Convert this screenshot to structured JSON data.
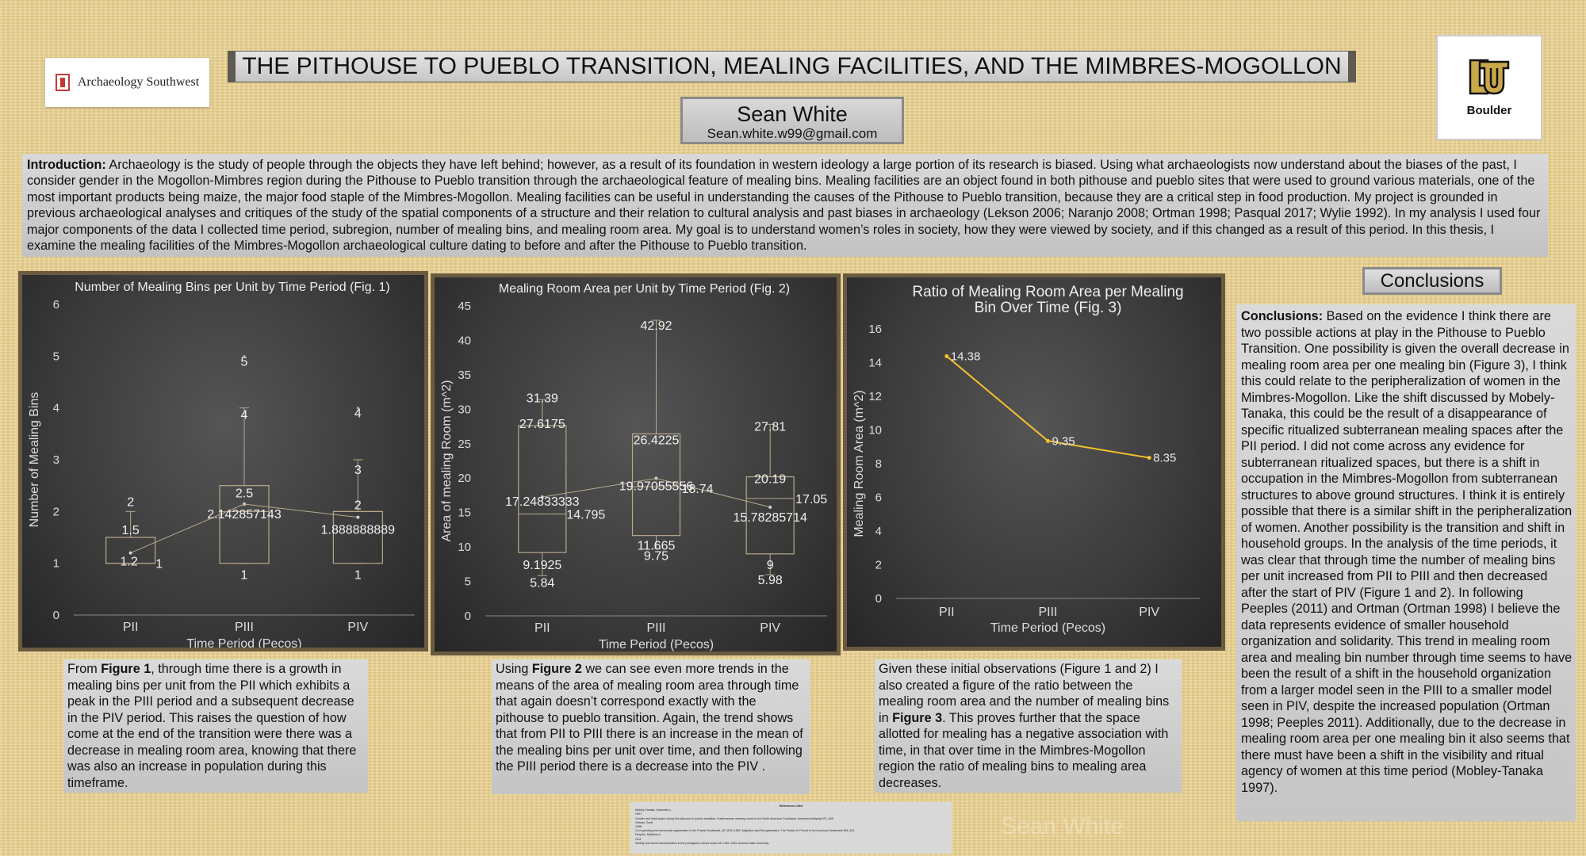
{
  "logo_left": {
    "text": "Archaeology Southwest"
  },
  "title": "THE PITHOUSE TO PUEBLO TRANSITION, MEALING FACILITIES, AND THE MIMBRES-MOGOLLON",
  "author": {
    "name": "Sean White",
    "email": "Sean.white.w99@gmail.com"
  },
  "logo_right": {
    "text": "Boulder"
  },
  "intro": {
    "heading": "Introduction:",
    "body": " Archaeology is the study of people through the objects they have left behind; however, as a result of its foundation in western ideology a large portion of its research is biased. Using what archaeologists now understand about the biases of the past, I consider gender in the Mogollon-Mimbres region during the Pithouse to Pueblo transition through the archaeological feature of mealing bins. Mealing facilities are an object found in both pithouse and pueblo sites that were used to ground various materials, one of the most important products being maize, the major food staple of the Mimbres-Mogollon. Mealing facilities can be useful in understanding the causes of the Pithouse to Pueblo transition, because they are a critical step in food production. My project is grounded in previous archaeological analyses and critiques of the study of the spatial components of a structure and their relation to cultural analysis and past biases in archaeology (Lekson 2006; Naranjo 2008; Ortman 1998; Pasqual 2017; Wylie 1992). In my analysis I used four major components of the data I collected time period, subregion, number of mealing bins, and mealing room area. My goal is to understand women’s roles in society, how they were viewed by society, and if this changed as a result of this period. In this thesis, I examine the mealing facilities of the Mimbres-Mogollon archaeological culture dating to before and after the Pithouse to Pueblo transition."
  },
  "chart_data": [
    {
      "type": "box",
      "title": "Number of Mealing Bins per Unit by Time Period (Fig. 1)",
      "xlabel": "Time Period (Pecos)",
      "ylabel": "Number of Mealing Bins",
      "ylim": [
        0,
        6
      ],
      "yticks": [
        "0",
        "1",
        "2",
        "3",
        "4",
        "5",
        "6"
      ],
      "categories": [
        "PII",
        "PIII",
        "PIV"
      ],
      "boxes": [
        {
          "min": 1,
          "q1": 1,
          "median": 1,
          "q3": 1.5,
          "max": 2,
          "mean": 1.2,
          "outliers": []
        },
        {
          "min": 1,
          "q1": 1,
          "median": 2,
          "q3": 2.5,
          "max": 4,
          "mean": 2.142857143,
          "outliers": [
            5
          ]
        },
        {
          "min": 1,
          "q1": 1,
          "median": 2,
          "q3": 2,
          "max": 3,
          "mean": 1.888888889,
          "outliers": [
            4
          ]
        }
      ],
      "labels": [
        "2",
        "1.5",
        "1.2",
        "1",
        "5",
        "4",
        "2.5",
        "2.142857143",
        "1",
        "4",
        "3",
        "2",
        "1.888888889",
        "1"
      ]
    },
    {
      "type": "box",
      "title": "Mealing Room Area per Unit by Time Period (Fig. 2)",
      "xlabel": "Time Period (Pecos)",
      "ylabel": "Area of mealing Room (m^2)",
      "ylim": [
        0,
        45
      ],
      "yticks": [
        "0",
        "5",
        "10",
        "15",
        "20",
        "25",
        "30",
        "35",
        "40",
        "45"
      ],
      "categories": [
        "PII",
        "PIII",
        "PIV"
      ],
      "boxes": [
        {
          "min": 5.84,
          "q1": 9.1925,
          "median": 14.795,
          "q3": 27.6175,
          "max": 31.39,
          "mean": 17.24833333
        },
        {
          "min": 9.75,
          "q1": 11.665,
          "median": 18.74,
          "q3": 26.4225,
          "max": 42.92,
          "mean": 19.97055556
        },
        {
          "min": 5.98,
          "q1": 9,
          "median": 17.05,
          "q3": 20.19,
          "max": 27.81,
          "mean": 15.78285714
        }
      ],
      "labels": [
        "31.39",
        "27.6175",
        "17.24833333",
        "14.795",
        "9.1925",
        "5.84",
        "42.92",
        "26.4225",
        "19.97055556",
        "18.74",
        "11.665",
        "9.75",
        "27.81",
        "20.19",
        "17.05",
        "15.78285714",
        "9",
        "5.98"
      ]
    },
    {
      "type": "line",
      "title": "Ratio of Mealing Room Area per Mealing Bin Over Time (Fig. 3)",
      "title_lines": [
        "Ratio of Mealing Room Area per Mealing",
        "Bin Over Time (Fig. 3)"
      ],
      "xlabel": "Time Period (Pecos)",
      "ylabel": "Mealing Room Area (m^2)",
      "ylim": [
        0,
        16
      ],
      "yticks": [
        "0",
        "2",
        "4",
        "6",
        "8",
        "10",
        "12",
        "14",
        "16"
      ],
      "categories": [
        "PII",
        "PIII",
        "PIV"
      ],
      "values": [
        14.38,
        9.35,
        8.35
      ],
      "labels": [
        "14.38",
        "9.35",
        "8.35"
      ],
      "line_color": "#f2c12e"
    }
  ],
  "captions": [
    {
      "pre": "From ",
      "bold": "Figure 1",
      "post": ", through time there is a growth in mealing bins per unit from the PII which exhibits a peak in the PIII period and a subsequent decrease in the PIV period. This raises the question of how come at the end of the transition were there was a decrease in mealing room area, knowing that there was also an increase in population during this timeframe."
    },
    {
      "pre": "Using ",
      "bold": "Figure 2",
      "post": " we can see even more trends in the means of the area of mealing room area through time that again doesn’t correspond exactly with the pithouse to pueblo transition. Again, the trend shows that from PII to PIII there is an increase in the mean of the mealing bins per unit over time, and then following the PIII period there is a decrease into the PIV ."
    },
    {
      "pre": "Given these initial observations (Figure 1 and 2) I also created a figure of the ratio between the mealing room area and the number of mealing bins in ",
      "bold": "Figure 3",
      "post": ". This proves further that the space allotted for mealing has a negative association with time, in that over time in the Mimbres-Mogollon region the ratio of mealing bins to mealing area decreases."
    }
  ],
  "conclusions": {
    "header": "Conclusions",
    "heading": "Conclusions:",
    "body": " Based on the evidence I think there are two possible actions at play in the Pithouse to Pueblo Transition. One possibility is given the overall decrease in mealing room area per one mealing bin (Figure 3), I think this could relate to the peripheralization of women in the Mimbres-Mogollon. Like the shift discussed by Mobely-Tanaka, this could be the result of  a disappearance of specific ritualized subterranean mealing spaces after the PII period. I did not come across any evidence for subterranean ritualized spaces, but there is a shift in occupation in the Mimbres-Mogollon from subterranean structures to above ground structures. I think it is entirely possible that there is a similar shift in the peripheralization of women. Another possibility is the transition and shift in household groups. In the analysis of the time periods, it was clear that through time the number of mealing bins per unit increased from PII to PIII and then decreased after the start of PIV (Figure 1 and 2). In following Peeples (2011) and Ortman (Ortman 1998) I believe the data represents evidence of smaller household organization and solidarity. This trend in mealing room area and mealing bin number through time seems to have been the result of a shift in the household organization from a larger model seen in the PIII to a smaller model seen in PIV, despite the increased population (Ortman 1998; Peeples 2011). Additionally, due to the decrease in mealing room area per one mealing bin it also seems that there must have been a shift in the visibility and ritual agency of women at this time period (Mobley-Tanaka 1997)."
  },
  "references": {
    "title": "References Cited",
    "lines": [
      "Mobley-Tanaka, Jeannette L.",
      "1997",
      "Gender and ritual space during the pithouse to pueblo transition: Subterranean mealing rooms in the North American Southwest. American Antiquity:437–448.",
      "Ortman, Scott",
      "1998",
      "Corn grinding and community organization in the Pueblo Southwest, AD 1150–1550. Migration and Reorganization: The Pueblo IV Period in the American Southwest:165–192.",
      "Peeples, Matthew A.",
      "2011",
      "Identity and social transformation in the prehispanic Cibola world: AD 1150–1325. Arizona State University."
    ]
  },
  "watermark": "Sean White"
}
